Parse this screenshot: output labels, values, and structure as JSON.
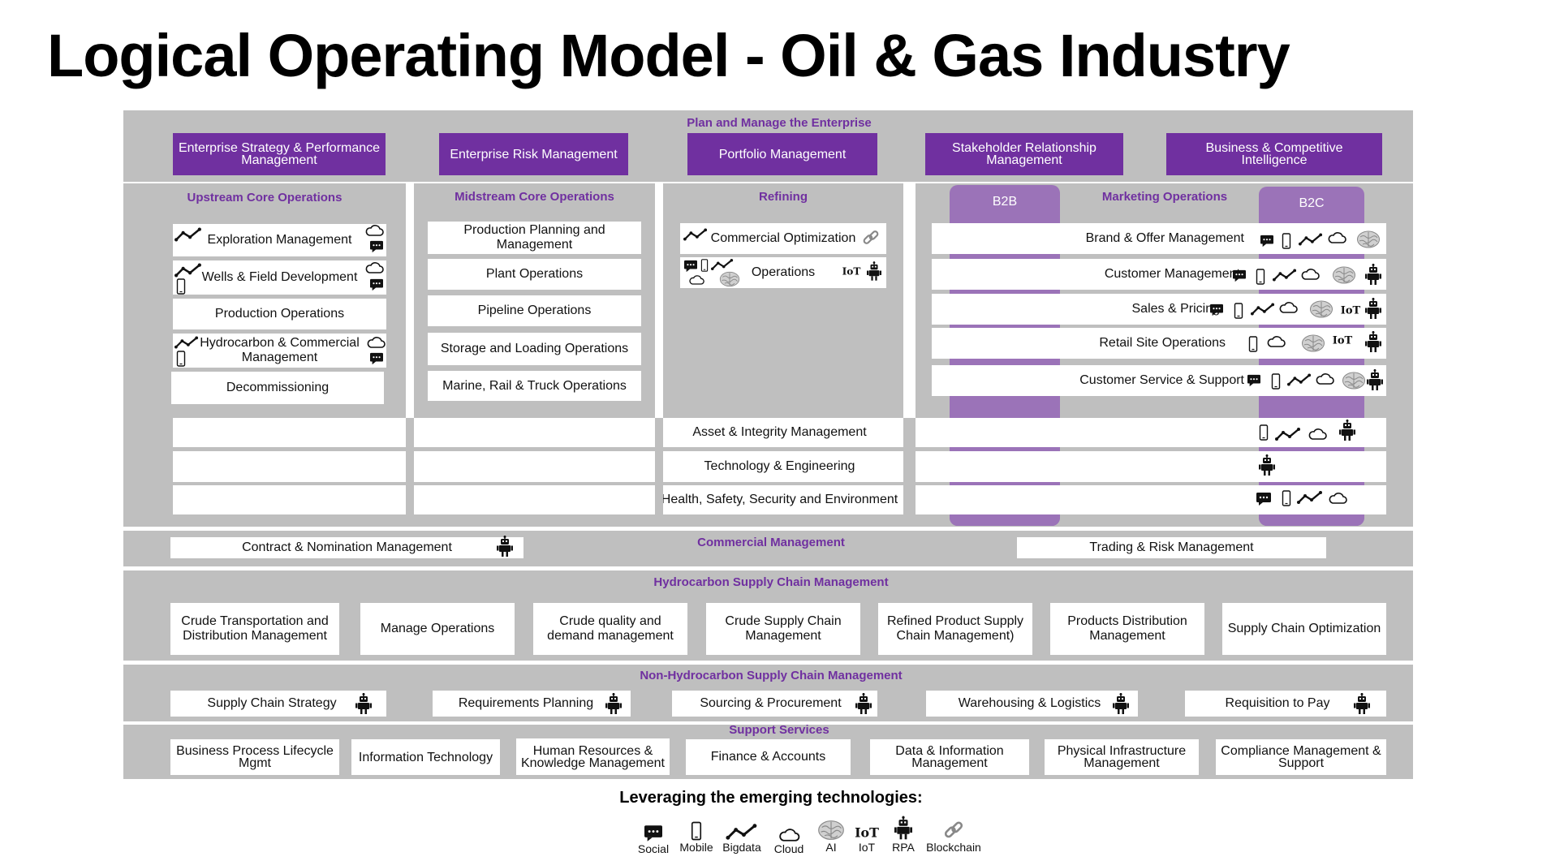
{
  "title": "Logical Operating Model - Oil & Gas Industry",
  "colors": {
    "purple": "#7030a0",
    "light_purple": "#9b73b8",
    "band_gray": "#bfbfbf"
  },
  "plan": {
    "label": "Plan and Manage the Enterprise",
    "items": [
      "Enterprise Strategy & Performance Management",
      "Enterprise Risk Management",
      "Portfolio Management",
      "Stakeholder Relationship Management",
      "Business & Competitive Intelligence"
    ]
  },
  "upstream": {
    "label": "Upstream Core Operations",
    "items": [
      "Exploration Management",
      "Wells & Field Development",
      "Production Operations",
      "Hydrocarbon & Commercial Management",
      "Decommissioning"
    ]
  },
  "midstream": {
    "label": "Midstream Core Operations",
    "items": [
      "Production Planning and Management",
      "Plant Operations",
      "Pipeline Operations",
      "Storage and Loading Operations",
      "Marine, Rail & Truck Operations"
    ]
  },
  "refining": {
    "label": "Refining",
    "items": [
      "Commercial Optimization",
      "Operations"
    ]
  },
  "marketing": {
    "label": "Marketing Operations",
    "b2b": "B2B",
    "b2c": "B2C",
    "items": [
      "Brand & Offer Management",
      "Customer Management",
      "Sales & Pricing",
      "Retail Site Operations",
      "Customer Service & Support"
    ]
  },
  "cross": [
    "Asset & Integrity Management",
    "Technology & Engineering",
    "Health, Safety, Security and Environment"
  ],
  "commercial": {
    "label": "Commercial Management",
    "left": "Contract & Nomination Management",
    "right": "Trading & Risk Management"
  },
  "hsc": {
    "label": "Hydrocarbon Supply Chain Management",
    "items": [
      "Crude Transportation and Distribution Management",
      "Manage Operations",
      "Crude quality and demand management",
      "Crude Supply Chain Management",
      "Refined Product Supply Chain Management)",
      "Products Distribution Management",
      "Supply Chain Optimization"
    ]
  },
  "nhsc": {
    "label": "Non-Hydrocarbon Supply Chain Management",
    "items": [
      "Supply Chain Strategy",
      "Requirements Planning",
      "Sourcing & Procurement",
      "Warehousing & Logistics",
      "Requisition to Pay"
    ]
  },
  "support": {
    "label": "Support  Services",
    "items": [
      "Business Process Lifecycle Mgmt",
      "Information Technology",
      "Human Resources & Knowledge Management",
      "Finance & Accounts",
      "Data & Information Management",
      "Physical Infrastructure Management",
      "Compliance Management & Support"
    ]
  },
  "legend": {
    "title": "Leveraging the emerging technologies:",
    "items": [
      {
        "label": "Social",
        "icon": "social-icon"
      },
      {
        "label": "Mobile",
        "icon": "mobile-icon"
      },
      {
        "label": "Bigdata",
        "icon": "bigdata-icon"
      },
      {
        "label": "Cloud",
        "icon": "cloud-icon"
      },
      {
        "label": "AI",
        "icon": "ai-icon"
      },
      {
        "label": "IoT",
        "icon": "iot-icon"
      },
      {
        "label": "RPA",
        "icon": "rpa-icon"
      },
      {
        "label": "Blockchain",
        "icon": "blockchain-icon"
      }
    ]
  }
}
